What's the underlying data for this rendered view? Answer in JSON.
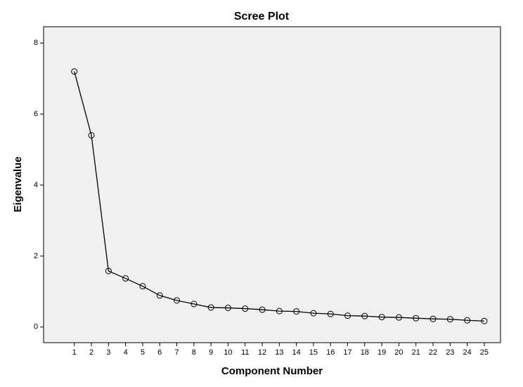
{
  "chart_data": {
    "type": "line",
    "title": "Scree Plot",
    "x_label": "Component Number",
    "y_label": "Eigenvalue",
    "x": [
      1,
      2,
      3,
      4,
      5,
      6,
      7,
      8,
      9,
      10,
      11,
      12,
      13,
      14,
      15,
      16,
      17,
      18,
      19,
      20,
      21,
      22,
      23,
      24,
      25
    ],
    "values": [
      7.2,
      5.4,
      1.58,
      1.37,
      1.15,
      0.89,
      0.75,
      0.65,
      0.55,
      0.54,
      0.52,
      0.49,
      0.45,
      0.44,
      0.39,
      0.37,
      0.32,
      0.31,
      0.28,
      0.27,
      0.25,
      0.23,
      0.22,
      0.19,
      0.17
    ],
    "color": "#000000",
    "xlim": [
      -0.8,
      25.95
    ],
    "xticks": [
      1,
      2,
      3,
      4,
      5,
      6,
      7,
      8,
      9,
      10,
      11,
      12,
      13,
      14,
      15,
      16,
      17,
      18,
      19,
      20,
      21,
      22,
      23,
      24,
      25
    ],
    "ylim": [
      -0.44,
      8.46
    ],
    "yticks": [
      0,
      2,
      4,
      6,
      8
    ],
    "grid": false,
    "markers": "open-circle"
  }
}
